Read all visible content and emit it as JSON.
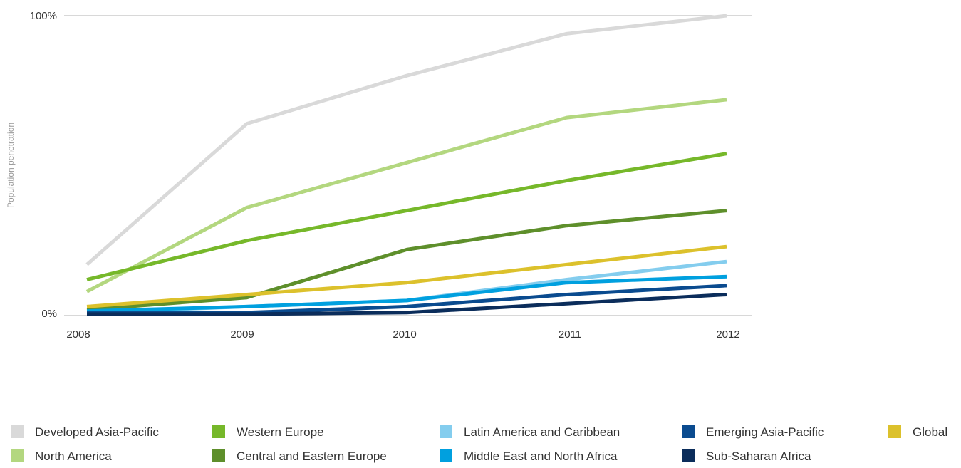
{
  "chart_data": {
    "type": "line",
    "title": "",
    "xlabel": "",
    "ylabel": "Population penetration",
    "x": [
      2008,
      2009,
      2010,
      2011,
      2012
    ],
    "x_tick_labels": [
      "2008",
      "2009",
      "2010",
      "2011",
      "2012"
    ],
    "ylim": [
      0,
      100
    ],
    "y_tick_labels": [
      "0%",
      "100%"
    ],
    "grid": "top and bottom lines only",
    "legend_position": "bottom",
    "series": [
      {
        "name": "Developed Asia-Pacific",
        "color": "#d9d9d9",
        "values": [
          17,
          64,
          80,
          94,
          100
        ]
      },
      {
        "name": "North America",
        "color": "#b3d77f",
        "values": [
          8,
          36,
          51,
          66,
          72
        ]
      },
      {
        "name": "Western Europe",
        "color": "#76b82a",
        "values": [
          12,
          25,
          35,
          45,
          54
        ]
      },
      {
        "name": "Central and Eastern Europe",
        "color": "#5e8f2b",
        "values": [
          2,
          6,
          22,
          30,
          35
        ]
      },
      {
        "name": "Global",
        "color": "#dcc12c",
        "values": [
          3,
          7,
          11,
          17,
          23
        ]
      },
      {
        "name": "Latin America and Caribbean",
        "color": "#84cdee",
        "values": [
          1,
          3,
          5,
          12,
          18
        ]
      },
      {
        "name": "Middle East and North Africa",
        "color": "#00a0df",
        "values": [
          1.5,
          3,
          5,
          11,
          13
        ]
      },
      {
        "name": "Emerging Asia-Pacific",
        "color": "#0a4b8f",
        "values": [
          1,
          1,
          3,
          7,
          10
        ]
      },
      {
        "name": "Sub-Saharan Africa",
        "color": "#0b2d5b",
        "values": [
          0.5,
          0.5,
          1,
          4,
          7
        ]
      }
    ],
    "legend_order": [
      "Developed Asia-Pacific",
      "Western Europe",
      "Latin America and Caribbean",
      "Emerging Asia-Pacific",
      "Global",
      "North America",
      "Central and Eastern Europe",
      "Middle East and North Africa",
      "Sub-Saharan Africa"
    ]
  }
}
